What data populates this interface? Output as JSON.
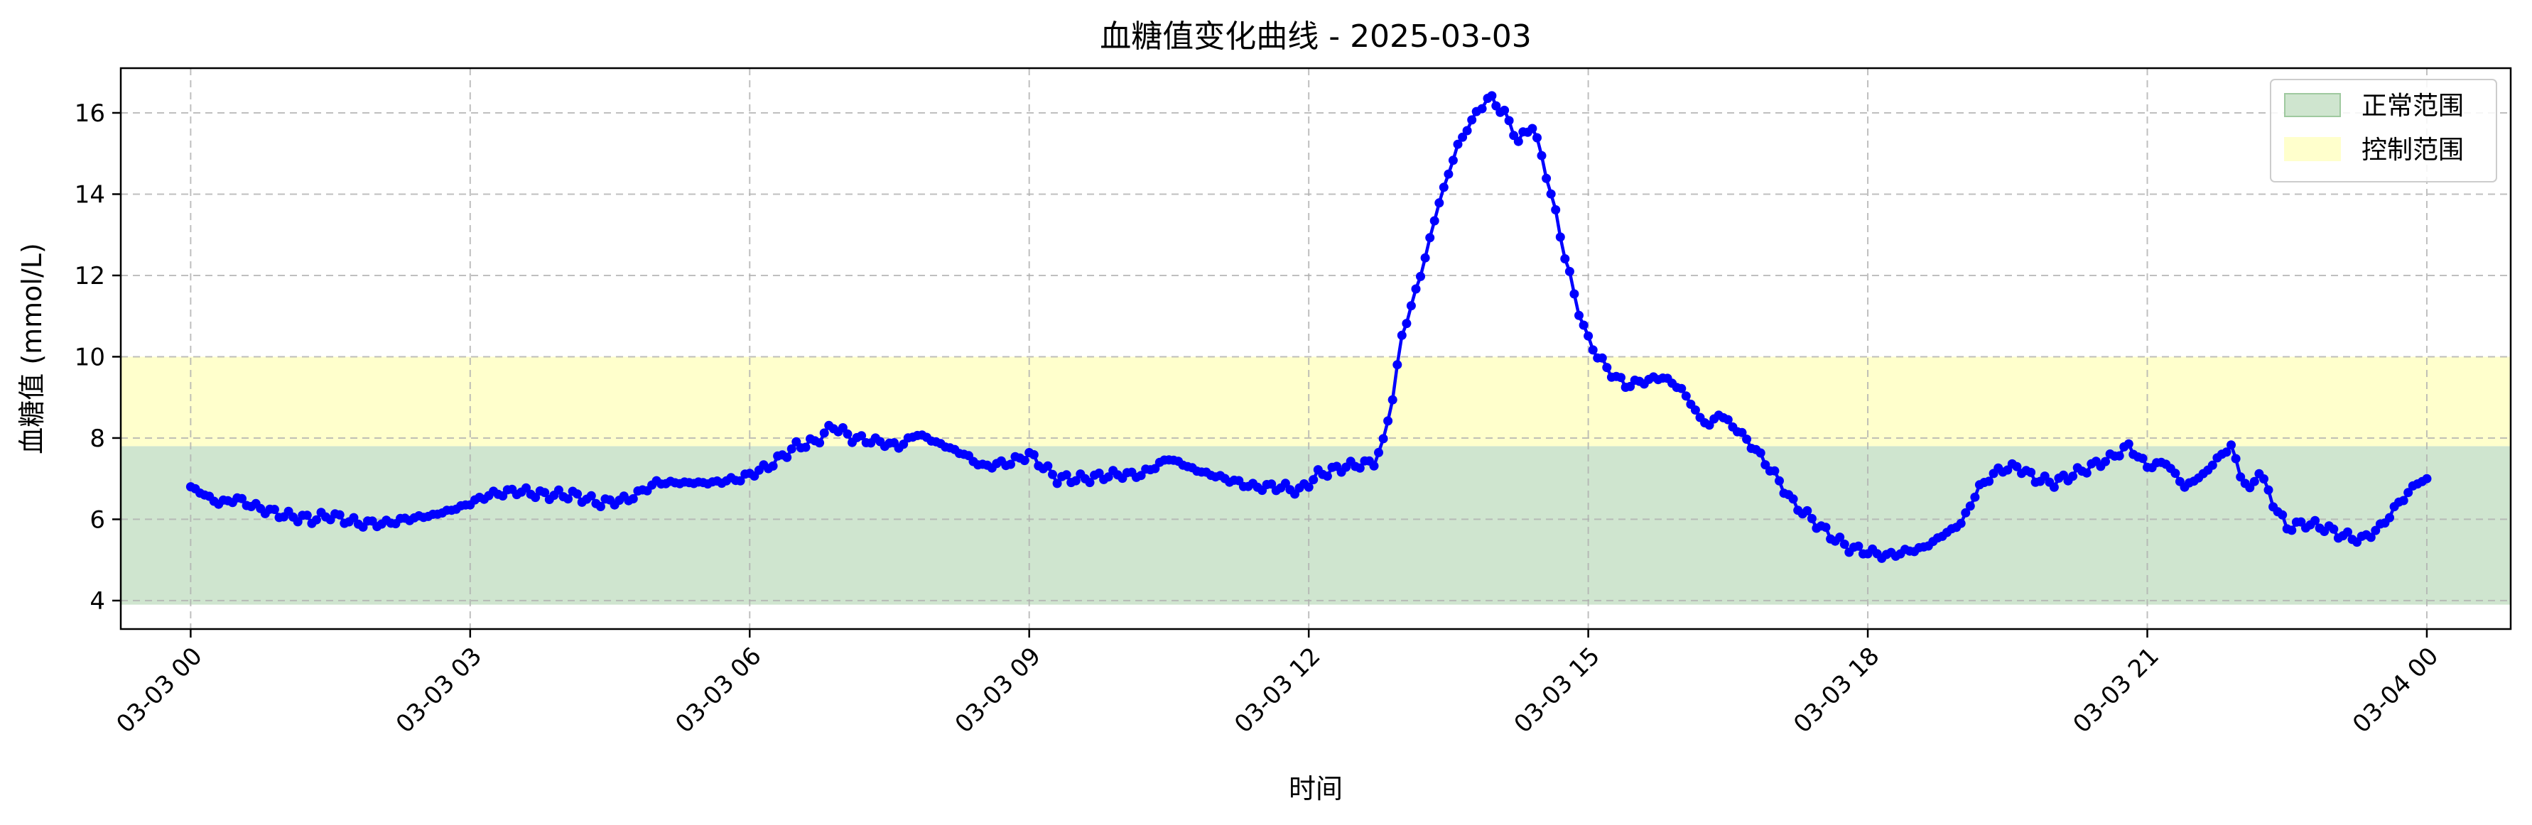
{
  "chart_data": {
    "type": "line",
    "title": "血糖值变化曲线 - 2025-03-03",
    "xlabel": "时间",
    "ylabel": "血糖值 (mmol/L)",
    "xlim": [
      -0.75,
      24.9
    ],
    "ylim": [
      3.3,
      17.1
    ],
    "grid": true,
    "legend_position": "top-right",
    "x_tick_values": [
      0,
      3,
      6,
      9,
      12,
      15,
      18,
      21,
      24
    ],
    "x_tick_labels": [
      "03-03 00",
      "03-03 03",
      "03-03 06",
      "03-03 09",
      "03-03 12",
      "03-03 15",
      "03-03 18",
      "03-03 21",
      "03-04 00"
    ],
    "y_ticks": [
      4,
      6,
      8,
      10,
      12,
      14,
      16
    ],
    "bands": [
      {
        "name": "正常范围",
        "ymin": 3.9,
        "ymax": 7.8,
        "color": "#cfe5cf",
        "edge": "#9fc99f"
      },
      {
        "name": "控制范围",
        "ymin": 7.8,
        "ymax": 10.0,
        "color": "#ffffcc",
        "edge": "#ffffcc"
      }
    ],
    "series": [
      {
        "color": "#0000ff",
        "keyframes": [
          [
            0.0,
            6.8
          ],
          [
            0.15,
            6.6
          ],
          [
            0.3,
            6.4
          ],
          [
            0.5,
            6.5
          ],
          [
            0.7,
            6.3
          ],
          [
            1.0,
            6.1
          ],
          [
            1.3,
            6.0
          ],
          [
            1.5,
            6.1
          ],
          [
            1.8,
            5.9
          ],
          [
            2.1,
            5.9
          ],
          [
            2.3,
            6.0
          ],
          [
            2.6,
            6.1
          ],
          [
            2.9,
            6.3
          ],
          [
            3.2,
            6.6
          ],
          [
            3.5,
            6.7
          ],
          [
            3.8,
            6.6
          ],
          [
            4.1,
            6.6
          ],
          [
            4.4,
            6.4
          ],
          [
            4.7,
            6.5
          ],
          [
            5.0,
            6.9
          ],
          [
            5.3,
            6.9
          ],
          [
            5.6,
            6.9
          ],
          [
            5.9,
            7.0
          ],
          [
            6.2,
            7.3
          ],
          [
            6.5,
            7.8
          ],
          [
            6.7,
            7.9
          ],
          [
            6.9,
            8.3
          ],
          [
            7.1,
            8.0
          ],
          [
            7.4,
            7.9
          ],
          [
            7.6,
            7.8
          ],
          [
            7.8,
            8.1
          ],
          [
            8.0,
            7.9
          ],
          [
            8.3,
            7.6
          ],
          [
            8.5,
            7.3
          ],
          [
            8.8,
            7.4
          ],
          [
            9.0,
            7.6
          ],
          [
            9.3,
            7.0
          ],
          [
            9.6,
            7.0
          ],
          [
            9.9,
            7.1
          ],
          [
            10.2,
            7.1
          ],
          [
            10.5,
            7.5
          ],
          [
            10.8,
            7.2
          ],
          [
            11.1,
            7.0
          ],
          [
            11.4,
            6.8
          ],
          [
            11.7,
            6.8
          ],
          [
            11.9,
            6.7
          ],
          [
            12.1,
            7.1
          ],
          [
            12.4,
            7.3
          ],
          [
            12.7,
            7.4
          ],
          [
            12.8,
            7.9
          ],
          [
            12.9,
            9.0
          ],
          [
            13.0,
            10.5
          ],
          [
            13.2,
            12.0
          ],
          [
            13.4,
            13.8
          ],
          [
            13.6,
            15.2
          ],
          [
            13.8,
            16.0
          ],
          [
            13.92,
            16.4
          ],
          [
            14.1,
            16.0
          ],
          [
            14.25,
            15.3
          ],
          [
            14.4,
            15.7
          ],
          [
            14.55,
            14.5
          ],
          [
            14.7,
            13.0
          ],
          [
            14.85,
            11.5
          ],
          [
            15.0,
            10.4
          ],
          [
            15.2,
            9.7
          ],
          [
            15.4,
            9.3
          ],
          [
            15.6,
            9.4
          ],
          [
            15.8,
            9.5
          ],
          [
            16.0,
            9.2
          ],
          [
            16.2,
            8.5
          ],
          [
            16.3,
            8.3
          ],
          [
            16.4,
            8.6
          ],
          [
            16.6,
            8.2
          ],
          [
            16.8,
            7.7
          ],
          [
            17.0,
            7.1
          ],
          [
            17.2,
            6.4
          ],
          [
            17.4,
            6.0
          ],
          [
            17.6,
            5.6
          ],
          [
            17.8,
            5.3
          ],
          [
            18.0,
            5.2
          ],
          [
            18.2,
            5.1
          ],
          [
            18.4,
            5.2
          ],
          [
            18.6,
            5.3
          ],
          [
            18.8,
            5.6
          ],
          [
            19.0,
            5.9
          ],
          [
            19.2,
            6.8
          ],
          [
            19.4,
            7.2
          ],
          [
            19.6,
            7.3
          ],
          [
            19.8,
            7.0
          ],
          [
            20.0,
            6.9
          ],
          [
            20.2,
            7.1
          ],
          [
            20.4,
            7.3
          ],
          [
            20.6,
            7.5
          ],
          [
            20.8,
            7.8
          ],
          [
            21.0,
            7.3
          ],
          [
            21.2,
            7.4
          ],
          [
            21.4,
            6.8
          ],
          [
            21.6,
            7.1
          ],
          [
            21.8,
            7.6
          ],
          [
            21.9,
            7.8
          ],
          [
            22.0,
            7.1
          ],
          [
            22.1,
            6.7
          ],
          [
            22.2,
            7.2
          ],
          [
            22.35,
            6.4
          ],
          [
            22.5,
            5.8
          ],
          [
            22.7,
            5.9
          ],
          [
            22.9,
            5.8
          ],
          [
            23.1,
            5.6
          ],
          [
            23.3,
            5.5
          ],
          [
            23.5,
            5.8
          ],
          [
            23.7,
            6.4
          ],
          [
            23.9,
            6.9
          ],
          [
            24.0,
            7.0
          ]
        ]
      }
    ]
  }
}
